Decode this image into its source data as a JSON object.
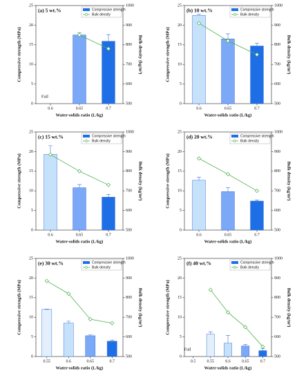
{
  "chart_data": [
    {
      "type": "bar",
      "title": "(a) 5 wt.%",
      "xlabel": "Water-solids ratio (L/kg)",
      "ylabel": "Compressive strength (MPa)",
      "y2label": "Bulk density (kg/m³)",
      "categories": [
        "0.6",
        "0.65",
        "0.7"
      ],
      "series": [
        {
          "name": "Compressive strength",
          "type": "bar",
          "color": "#1e6fe6",
          "colors": [
            "#c6e2fb",
            "#7ba8f7",
            "#1e6fe6"
          ],
          "values": [
            null,
            17.5,
            15.9
          ],
          "errors": [
            null,
            0.6,
            1.7
          ]
        },
        {
          "name": "Bulk density",
          "type": "line",
          "axis": "y2",
          "color": "#4cae4c",
          "values": [
            null,
            850,
            780
          ]
        }
      ],
      "annotation": "Fail",
      "ylim": [
        0,
        25
      ],
      "yticks": [
        0,
        5,
        10,
        15,
        20,
        25
      ],
      "y2lim": [
        500,
        1000
      ],
      "y2ticks": [
        500,
        600,
        700,
        800,
        900,
        1000
      ]
    },
    {
      "type": "bar",
      "title": "(b) 10 wt.%",
      "xlabel": "Water-solids ratio (L/kg)",
      "ylabel": "Compressive strength (MPa)",
      "y2label": "Bulk density (kg/m³)",
      "categories": [
        "0.6",
        "0.65",
        "0.7"
      ],
      "series": [
        {
          "name": "Compressive strength",
          "type": "bar",
          "color": "#1e6fe6",
          "colors": [
            "#c6e2fb",
            "#7ba8f7",
            "#1e6fe6"
          ],
          "values": [
            22.5,
            16.5,
            14.7
          ],
          "errors": [
            0.3,
            1.3,
            0.7
          ]
        },
        {
          "name": "Bulk density",
          "type": "line",
          "axis": "y2",
          "color": "#4cae4c",
          "values": [
            910,
            820,
            750
          ]
        }
      ],
      "ylim": [
        0,
        25
      ],
      "yticks": [
        0,
        5,
        10,
        15,
        20,
        25
      ],
      "y2lim": [
        500,
        1000
      ],
      "y2ticks": [
        500,
        600,
        700,
        800,
        900,
        1000
      ]
    },
    {
      "type": "bar",
      "title": "(c) 15 wt.%",
      "xlabel": "Water-solids ratio (L/kg)",
      "ylabel": "Compressive strength (MPa)",
      "y2label": "Bulk density (kg/m³)",
      "categories": [
        "0.6",
        "0.65",
        "0.7"
      ],
      "series": [
        {
          "name": "Compressive strength",
          "type": "bar",
          "color": "#1e6fe6",
          "colors": [
            "#c6e2fb",
            "#7ba8f7",
            "#1e6fe6"
          ],
          "values": [
            19.3,
            10.8,
            8.4
          ],
          "errors": [
            2.2,
            0.8,
            0.7
          ]
        },
        {
          "name": "Bulk density",
          "type": "line",
          "axis": "y2",
          "color": "#4cae4c",
          "values": [
            885,
            800,
            730
          ]
        }
      ],
      "ylim": [
        0,
        25
      ],
      "yticks": [
        0,
        5,
        10,
        15,
        20,
        25
      ],
      "y2lim": [
        500,
        1000
      ],
      "y2ticks": [
        500,
        600,
        700,
        800,
        900,
        1000
      ]
    },
    {
      "type": "bar",
      "title": "(d) 20 wt.%",
      "xlabel": "Water-solids ratio (L/kg)",
      "ylabel": "Compressive strength (MPa)",
      "y2label": "Bulk density (kg/m³)",
      "categories": [
        "0.6",
        "0.65",
        "0.7"
      ],
      "series": [
        {
          "name": "Compressive strength",
          "type": "bar",
          "color": "#1e6fe6",
          "colors": [
            "#c6e2fb",
            "#7ba8f7",
            "#1e6fe6"
          ],
          "values": [
            12.7,
            9.8,
            7.4
          ],
          "errors": [
            0.8,
            1.0,
            0.3
          ]
        },
        {
          "name": "Bulk density",
          "type": "line",
          "axis": "y2",
          "color": "#4cae4c",
          "values": [
            865,
            785,
            700
          ]
        }
      ],
      "ylim": [
        0,
        25
      ],
      "yticks": [
        0,
        5,
        10,
        15,
        20,
        25
      ],
      "y2lim": [
        500,
        1000
      ],
      "y2ticks": [
        500,
        600,
        700,
        800,
        900,
        1000
      ]
    },
    {
      "type": "bar",
      "title": "(e) 30 wt.%",
      "xlabel": "Water-solids ratio (L/kg)",
      "ylabel": "Compressive strength (MPa)",
      "y2label": "Bulk density (kg/m³)",
      "categories": [
        "0.55",
        "0.6",
        "0.65",
        "0.7"
      ],
      "series": [
        {
          "name": "Compressive strength",
          "type": "bar",
          "color": "#1e6fe6",
          "colors": [
            "#e3f0fc",
            "#c6e2fb",
            "#7ba8f7",
            "#1e6fe6"
          ],
          "values": [
            12.0,
            8.5,
            5.3,
            3.9
          ],
          "errors": [
            0.1,
            0.5,
            0.2,
            0.3
          ]
        },
        {
          "name": "Bulk density",
          "type": "line",
          "axis": "y2",
          "color": "#4cae4c",
          "values": [
            885,
            820,
            690,
            670
          ]
        }
      ],
      "ylim": [
        0,
        25
      ],
      "yticks": [
        0,
        5,
        10,
        15,
        20,
        25
      ],
      "y2lim": [
        500,
        1000
      ],
      "y2ticks": [
        500,
        600,
        700,
        800,
        900,
        1000
      ]
    },
    {
      "type": "bar",
      "title": "(f) 40 wt.%",
      "xlabel": "Water-solids ratio (L/kg)",
      "ylabel": "Compressive strength (MPa)",
      "y2label": "Bulk density (kg/m³)",
      "categories": [
        "0.5",
        "0.55",
        "0.6",
        "0.65",
        "0.7"
      ],
      "series": [
        {
          "name": "Compressive strength",
          "type": "bar",
          "color": "#1e6fe6",
          "colors": [
            "#e3f0fc",
            "#e3f0fc",
            "#c6e2fb",
            "#7ba8f7",
            "#1e6fe6"
          ],
          "values": [
            null,
            5.7,
            3.4,
            2.7,
            1.5
          ],
          "errors": [
            null,
            0.6,
            2.0,
            0.4,
            0.5
          ]
        },
        {
          "name": "Bulk density",
          "type": "line",
          "axis": "y2",
          "color": "#4cae4c",
          "values": [
            null,
            840,
            725,
            650,
            550
          ]
        }
      ],
      "annotation": "Fail",
      "ylim": [
        0,
        25
      ],
      "yticks": [
        0,
        5,
        10,
        15,
        20,
        25
      ],
      "y2lim": [
        500,
        1000
      ],
      "y2ticks": [
        500,
        600,
        700,
        800,
        900,
        1000
      ]
    }
  ]
}
